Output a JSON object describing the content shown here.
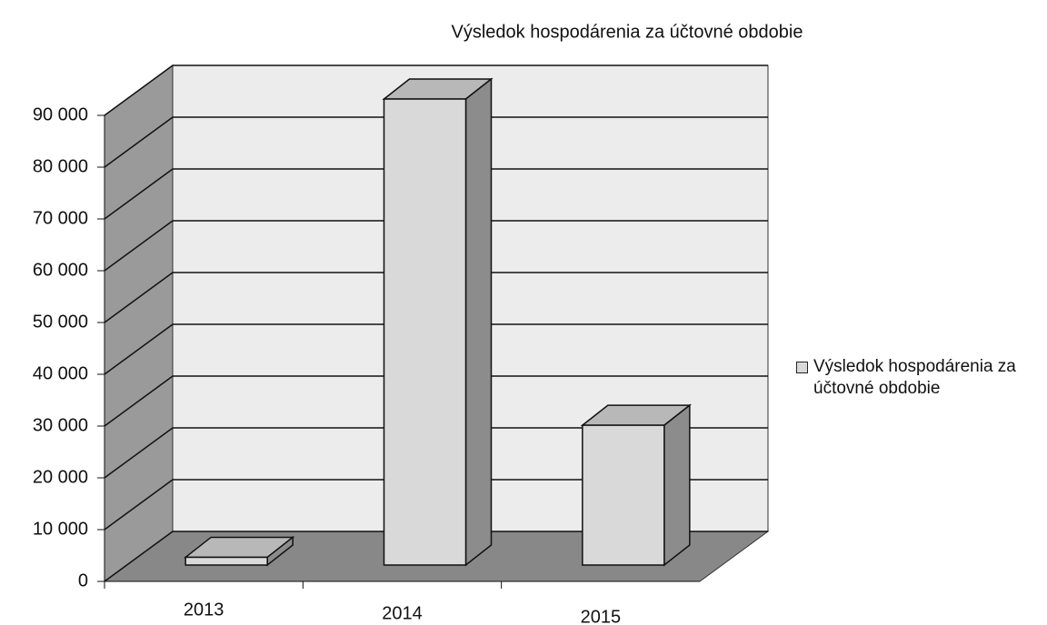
{
  "chart_data": {
    "type": "bar3d",
    "title": "Výsledok hospodárenia za účtovné obdobie",
    "categories": [
      "2013",
      "2014",
      "2015"
    ],
    "series": [
      {
        "name": "Výsledok hospodárenia za účtovné obdobie",
        "color": "#d9d9d9",
        "values": [
          1500,
          90000,
          27000
        ]
      }
    ],
    "ylim": [
      0,
      90000
    ],
    "yticks": [
      0,
      {
        "value": 10000,
        "label": "10 000"
      },
      {
        "value": 20000,
        "label": "20 000"
      },
      {
        "value": 30000,
        "label": "30 000"
      },
      {
        "value": 40000,
        "label": "40 000"
      },
      {
        "value": 50000,
        "label": "50 000"
      },
      {
        "value": 60000,
        "label": "60 000"
      },
      {
        "value": 70000,
        "label": "70 000"
      },
      {
        "value": 80000,
        "label": "80 000"
      },
      {
        "value": 90000,
        "label": "90 000"
      }
    ],
    "grid": true,
    "legend": "right"
  }
}
